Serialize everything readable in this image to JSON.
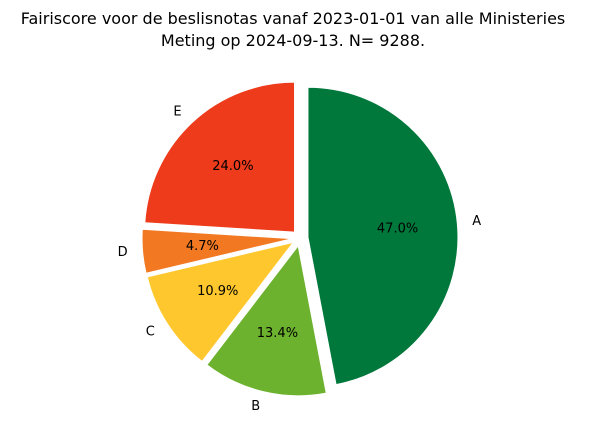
{
  "chart_data": {
    "type": "pie",
    "title": "Fairiscore voor de beslisnotas vanaf 2023-01-01 van alle Ministeries",
    "subtitle": "Meting op 2024-09-13. N= 9288.",
    "slices": [
      {
        "label": "A",
        "value": 47.0,
        "pct_text": "47.0%",
        "color": "#00783c"
      },
      {
        "label": "B",
        "value": 13.4,
        "pct_text": "13.4%",
        "color": "#6db22e"
      },
      {
        "label": "C",
        "value": 10.9,
        "pct_text": "10.9%",
        "color": "#fec72e"
      },
      {
        "label": "D",
        "value": 4.7,
        "pct_text": "4.7%",
        "color": "#f27822"
      },
      {
        "label": "E",
        "value": 24.0,
        "pct_text": "24.0%",
        "color": "#ee3b1b"
      }
    ],
    "start_angle_deg": 90,
    "direction": "clockwise",
    "exploded": true,
    "legend": false
  }
}
